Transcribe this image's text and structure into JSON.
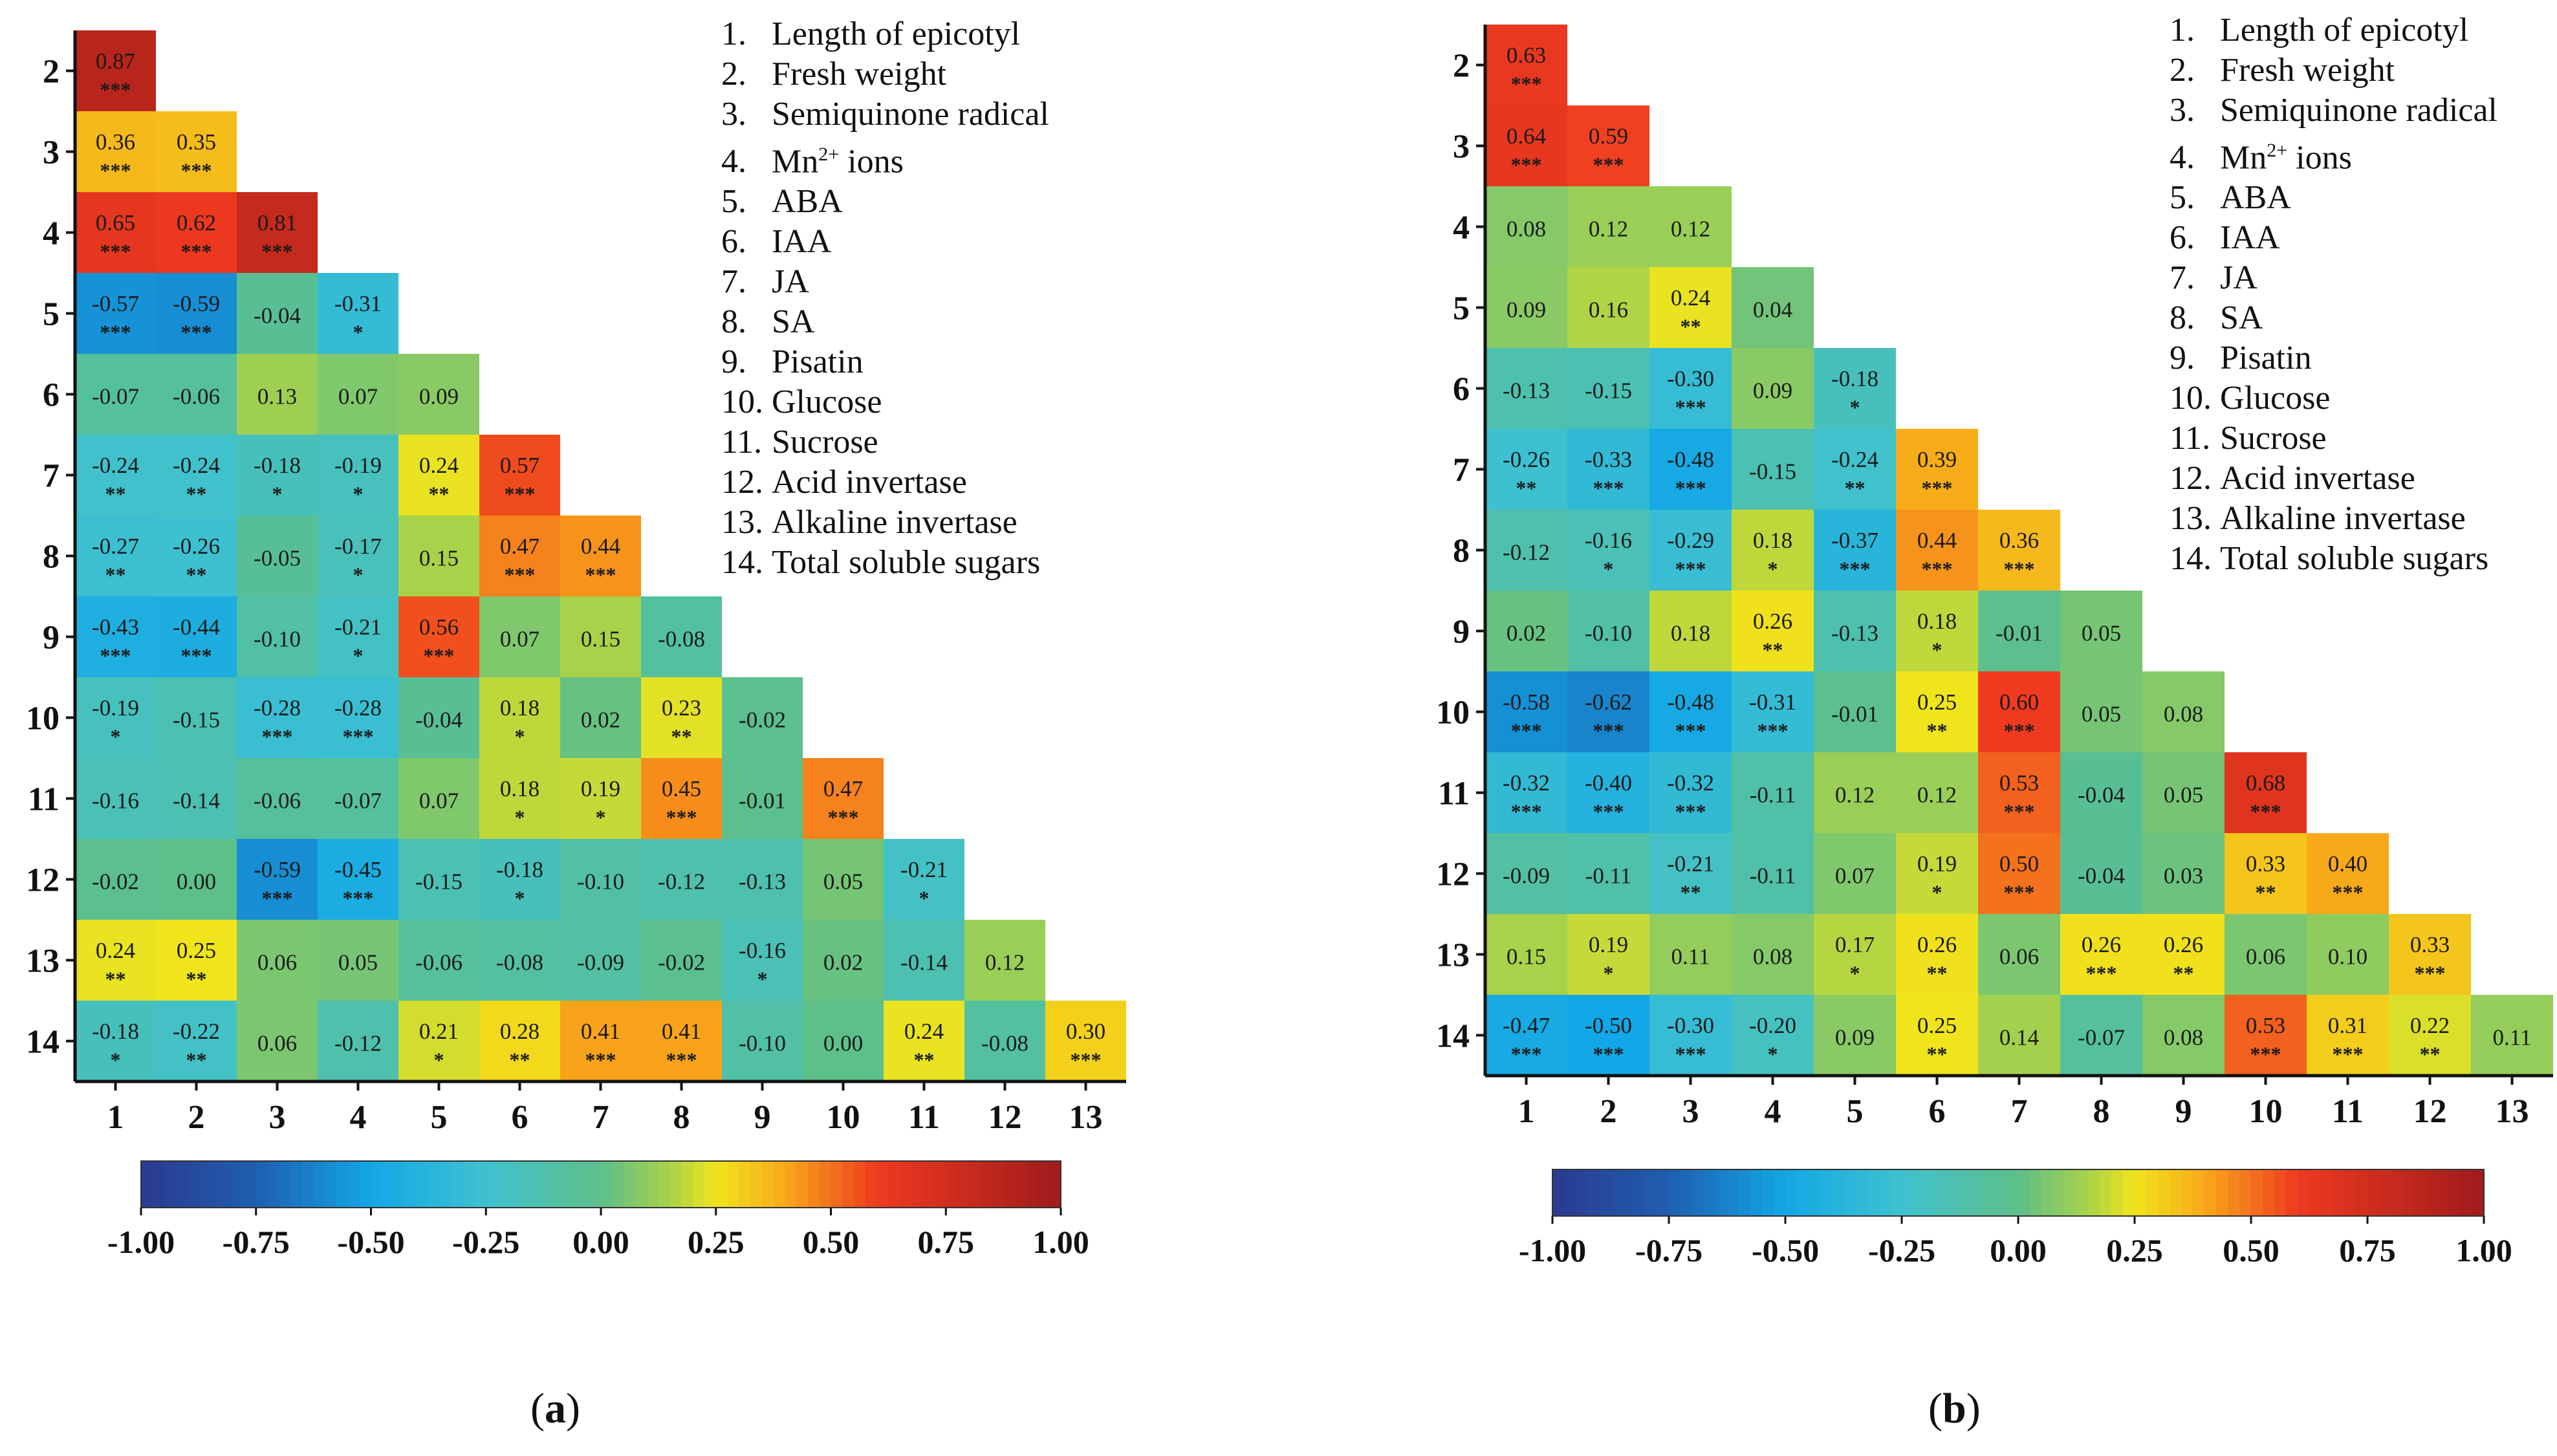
{
  "variables": [
    "1.|Length of epicotyl",
    "2.|Fresh weight",
    "3.|Semiquinone radical",
    "4.|Mn2+ ions",
    "5.|ABA",
    "6.|IAA",
    "7.|JA",
    "8.|SA",
    "9.|Pisatin",
    "10.|Glucose",
    "11.|Sucrose",
    "12.|Acid invertase",
    "13.|Alkaline invertase",
    "14.|Total soluble sugars"
  ],
  "legend": [
    {
      "num": "1.",
      "label": "Length of epicotyl"
    },
    {
      "num": "2.",
      "label": "Fresh weight"
    },
    {
      "num": "3.",
      "label": "Semiquinone radical"
    },
    {
      "num": "4.",
      "label": "Mn",
      "sup": "2+",
      "suffix": " ions"
    },
    {
      "num": "5.",
      "label": "ABA"
    },
    {
      "num": "6.",
      "label": "IAA"
    },
    {
      "num": "7.",
      "label": "JA"
    },
    {
      "num": "8.",
      "label": "SA"
    },
    {
      "num": "9.",
      "label": "Pisatin"
    },
    {
      "num": "10.",
      "label": "Glucose"
    },
    {
      "num": "11.",
      "label": "Sucrose"
    },
    {
      "num": "12.",
      "label": "Acid invertase"
    },
    {
      "num": "13.",
      "label": "Alkaline invertase"
    },
    {
      "num": "14.",
      "label": "Total soluble sugars"
    }
  ],
  "colorscale": {
    "ticks": [
      "-1.00",
      "-0.75",
      "-0.50",
      "-0.25",
      "0.00",
      "0.25",
      "0.50",
      "0.75",
      "1.00"
    ],
    "stops": [
      [
        -1.0,
        "#2b3a8f"
      ],
      [
        -0.75,
        "#1f5eb0"
      ],
      [
        -0.5,
        "#12a7e6"
      ],
      [
        -0.25,
        "#3fc1cf"
      ],
      [
        0.0,
        "#5dbf8a"
      ],
      [
        0.15,
        "#a8d24a"
      ],
      [
        0.25,
        "#f0e51c"
      ],
      [
        0.4,
        "#f8a91a"
      ],
      [
        0.6,
        "#ef3a1f"
      ],
      [
        1.0,
        "#9e1b1b"
      ]
    ]
  },
  "chart_data": [
    {
      "type": "heatmap",
      "caption": "a",
      "row_labels": [
        "2",
        "3",
        "4",
        "5",
        "6",
        "7",
        "8",
        "9",
        "10",
        "11",
        "12",
        "13",
        "14"
      ],
      "col_labels": [
        "1",
        "2",
        "3",
        "4",
        "5",
        "6",
        "7",
        "8",
        "9",
        "10",
        "11",
        "12",
        "13"
      ],
      "range": [
        -1,
        1
      ],
      "values": [
        [
          0.87
        ],
        [
          0.36,
          0.35
        ],
        [
          0.65,
          0.62,
          0.81
        ],
        [
          -0.57,
          -0.59,
          -0.04,
          -0.31
        ],
        [
          -0.07,
          -0.06,
          0.13,
          0.07,
          0.09
        ],
        [
          -0.24,
          -0.24,
          -0.18,
          -0.19,
          0.24,
          0.57
        ],
        [
          -0.27,
          -0.26,
          -0.05,
          -0.17,
          0.15,
          0.47,
          0.44
        ],
        [
          -0.43,
          -0.44,
          -0.1,
          -0.21,
          0.56,
          0.07,
          0.15,
          -0.08
        ],
        [
          -0.19,
          -0.15,
          -0.28,
          -0.28,
          -0.04,
          0.18,
          0.02,
          0.23,
          -0.02
        ],
        [
          -0.16,
          -0.14,
          -0.06,
          -0.07,
          0.07,
          0.18,
          0.19,
          0.45,
          -0.01,
          0.47
        ],
        [
          -0.02,
          0.0,
          -0.59,
          -0.45,
          -0.15,
          -0.18,
          -0.1,
          -0.12,
          -0.13,
          0.05,
          -0.21
        ],
        [
          0.24,
          0.25,
          0.06,
          0.05,
          -0.06,
          -0.08,
          -0.09,
          -0.02,
          -0.16,
          0.02,
          -0.14,
          0.12
        ],
        [
          -0.18,
          -0.22,
          0.06,
          -0.12,
          0.21,
          0.28,
          0.41,
          0.41,
          -0.1,
          0.0,
          0.24,
          -0.08,
          0.3
        ]
      ],
      "labels": [
        [
          "0.87"
        ],
        [
          "0.36",
          "0.35"
        ],
        [
          "0.65",
          "0.62",
          "0.81"
        ],
        [
          "-0.57",
          "-0.59",
          "-0.04",
          "-0.31"
        ],
        [
          "-0.07",
          "-0.06",
          "0.13",
          "0.07",
          "0.09"
        ],
        [
          "-0.24",
          "-0.24",
          "-0.18",
          "-0.19",
          "0.24",
          "0.57"
        ],
        [
          "-0.27",
          "-0.26",
          "-0.05",
          "-0.17",
          "0.15",
          "0.47",
          "0.44"
        ],
        [
          "-0.43",
          "-0.44",
          "-0.10",
          "-0.21",
          "0.56",
          "0.07",
          "0.15",
          "-0.08"
        ],
        [
          "-0.19",
          "-0.15",
          "-0.28",
          "-0.28",
          "-0.04",
          "0.18",
          "0.02",
          "0.23",
          "-0.02"
        ],
        [
          "-0.16",
          "-0.14",
          "-0.06",
          "-0.07",
          "0.07",
          "0.18",
          "0.19",
          "0.45",
          "-0.01",
          "0.47"
        ],
        [
          "-0.02",
          "0.00",
          "-0.59",
          "-0.45",
          "-0.15",
          "-0.18",
          "-0.10",
          "-0.12",
          "-0.13",
          "0.05",
          "-0.21"
        ],
        [
          "0.24",
          "0.25",
          "0.06",
          "0.05",
          "-0.06",
          "-0.08",
          "-0.09",
          "-0.02",
          "-0.16",
          "0.02",
          "-0.14",
          "0.12"
        ],
        [
          "-0.18",
          "-0.22",
          "0.06",
          "-0.12",
          "0.21",
          "0.28",
          "0.41",
          "0.41",
          "-0.10",
          "0.00",
          "0.24",
          "-0.08",
          "0.30"
        ]
      ],
      "stars": [
        [
          "***"
        ],
        [
          "***",
          "***"
        ],
        [
          "***",
          "***",
          "***"
        ],
        [
          "***",
          "***",
          "",
          "*"
        ],
        [
          "",
          "",
          "",
          "",
          ""
        ],
        [
          "**",
          "**",
          "*",
          "*",
          "**",
          "***"
        ],
        [
          "**",
          "**",
          "",
          "*",
          "",
          "***",
          "***"
        ],
        [
          "***",
          "***",
          "",
          "*",
          "***",
          "",
          "",
          ""
        ],
        [
          "*",
          "",
          "***",
          "***",
          "",
          "*",
          "",
          "**",
          ""
        ],
        [
          "",
          "",
          "",
          "",
          "",
          "*",
          "*",
          "***",
          "",
          "***"
        ],
        [
          "",
          "",
          "***",
          "***",
          "",
          "*",
          "",
          "",
          "",
          "",
          "*"
        ],
        [
          "**",
          "**",
          "",
          "",
          "",
          "",
          "",
          "",
          "*",
          "",
          "",
          ""
        ],
        [
          "*",
          "**",
          "",
          "",
          "*",
          "**",
          "***",
          "***",
          "",
          "",
          "**",
          "",
          "***"
        ]
      ]
    },
    {
      "type": "heatmap",
      "caption": "b",
      "row_labels": [
        "2",
        "3",
        "4",
        "5",
        "6",
        "7",
        "8",
        "9",
        "10",
        "11",
        "12",
        "13",
        "14"
      ],
      "col_labels": [
        "1",
        "2",
        "3",
        "4",
        "5",
        "6",
        "7",
        "8",
        "9",
        "10",
        "11",
        "12",
        "13"
      ],
      "range": [
        -1,
        1
      ],
      "values": [
        [
          0.63
        ],
        [
          0.64,
          0.59
        ],
        [
          0.08,
          0.12,
          0.12
        ],
        [
          0.09,
          0.16,
          0.24,
          0.04
        ],
        [
          -0.13,
          -0.15,
          -0.3,
          0.09,
          -0.18
        ],
        [
          -0.26,
          -0.33,
          -0.48,
          -0.15,
          -0.24,
          0.39
        ],
        [
          -0.12,
          -0.16,
          -0.29,
          0.18,
          -0.37,
          0.44,
          0.36
        ],
        [
          0.02,
          -0.1,
          0.18,
          0.26,
          -0.13,
          0.18,
          -0.01,
          0.05
        ],
        [
          -0.58,
          -0.62,
          -0.48,
          -0.31,
          -0.01,
          0.25,
          0.6,
          0.05,
          0.08
        ],
        [
          -0.32,
          -0.4,
          -0.32,
          -0.11,
          0.12,
          0.12,
          0.53,
          -0.04,
          0.05,
          0.68
        ],
        [
          -0.09,
          -0.11,
          -0.21,
          -0.11,
          0.07,
          0.19,
          0.5,
          -0.04,
          0.03,
          0.33,
          0.4
        ],
        [
          0.15,
          0.19,
          0.11,
          0.08,
          0.17,
          0.26,
          0.06,
          0.26,
          0.26,
          0.06,
          0.1,
          0.33
        ],
        [
          -0.47,
          -0.5,
          -0.3,
          -0.2,
          0.09,
          0.25,
          0.14,
          -0.07,
          0.08,
          0.53,
          0.31,
          0.22,
          0.11
        ]
      ],
      "labels": [
        [
          "0.63"
        ],
        [
          "0.64",
          "0.59"
        ],
        [
          "0.08",
          "0.12",
          "0.12"
        ],
        [
          "0.09",
          "0.16",
          "0.24",
          "0.04"
        ],
        [
          "-0.13",
          "-0.15",
          "-0.30",
          "0.09",
          "-0.18"
        ],
        [
          "-0.26",
          "-0.33",
          "-0.48",
          "-0.15",
          "-0.24",
          "0.39"
        ],
        [
          "-0.12",
          "-0.16",
          "-0.29",
          "0.18",
          "-0.37",
          "0.44",
          "0.36"
        ],
        [
          "0.02",
          "-0.10",
          "0.18",
          "0.26",
          "-0.13",
          "0.18",
          "-0.01",
          "0.05"
        ],
        [
          "-0.58",
          "-0.62",
          "-0.48",
          "-0.31",
          "-0.01",
          "0.25",
          "0.60",
          "0.05",
          "0.08"
        ],
        [
          "-0.32",
          "-0.40",
          "-0.32",
          "-0.11",
          "0.12",
          "0.12",
          "0.53",
          "-0.04",
          "0.05",
          "0.68"
        ],
        [
          "-0.09",
          "-0.11",
          "-0.21",
          "-0.11",
          "0.07",
          "0.19",
          "0.50",
          "-0.04",
          "0.03",
          "0.33",
          "0.40"
        ],
        [
          "0.15",
          "0.19",
          "0.11",
          "0.08",
          "0.17",
          "0.26",
          "0.06",
          "0.26",
          "0.26",
          "0.06",
          "0.10",
          "0.33"
        ],
        [
          "-0.47",
          "-0.50",
          "-0.30",
          "-0.20",
          "0.09",
          "0.25",
          "0.14",
          "-0.07",
          "0.08",
          "0.53",
          "0.31",
          "0.22",
          "0.11"
        ]
      ],
      "stars": [
        [
          "***"
        ],
        [
          "***",
          "***"
        ],
        [
          "",
          "",
          ""
        ],
        [
          "",
          "",
          "**",
          ""
        ],
        [
          "",
          "",
          "***",
          "",
          "*"
        ],
        [
          "**",
          "***",
          "***",
          "",
          "**",
          "***"
        ],
        [
          "",
          "*",
          "***",
          "*",
          "***",
          "***",
          "***"
        ],
        [
          "",
          "",
          "",
          "**",
          "",
          "*",
          "",
          ""
        ],
        [
          "***",
          "***",
          "***",
          "***",
          "",
          "**",
          "***",
          "",
          ""
        ],
        [
          "***",
          "***",
          "***",
          "",
          "",
          "",
          "***",
          "",
          "",
          "***"
        ],
        [
          "",
          "",
          "**",
          "",
          "",
          "*",
          "***",
          "",
          "",
          "**",
          "***"
        ],
        [
          "",
          "*",
          "",
          "",
          "*",
          "**",
          "",
          "***",
          "**",
          "",
          "",
          "***"
        ],
        [
          "***",
          "***",
          "***",
          "*",
          "",
          "**",
          "",
          "",
          "",
          "***",
          "***",
          "**",
          ""
        ]
      ]
    }
  ]
}
